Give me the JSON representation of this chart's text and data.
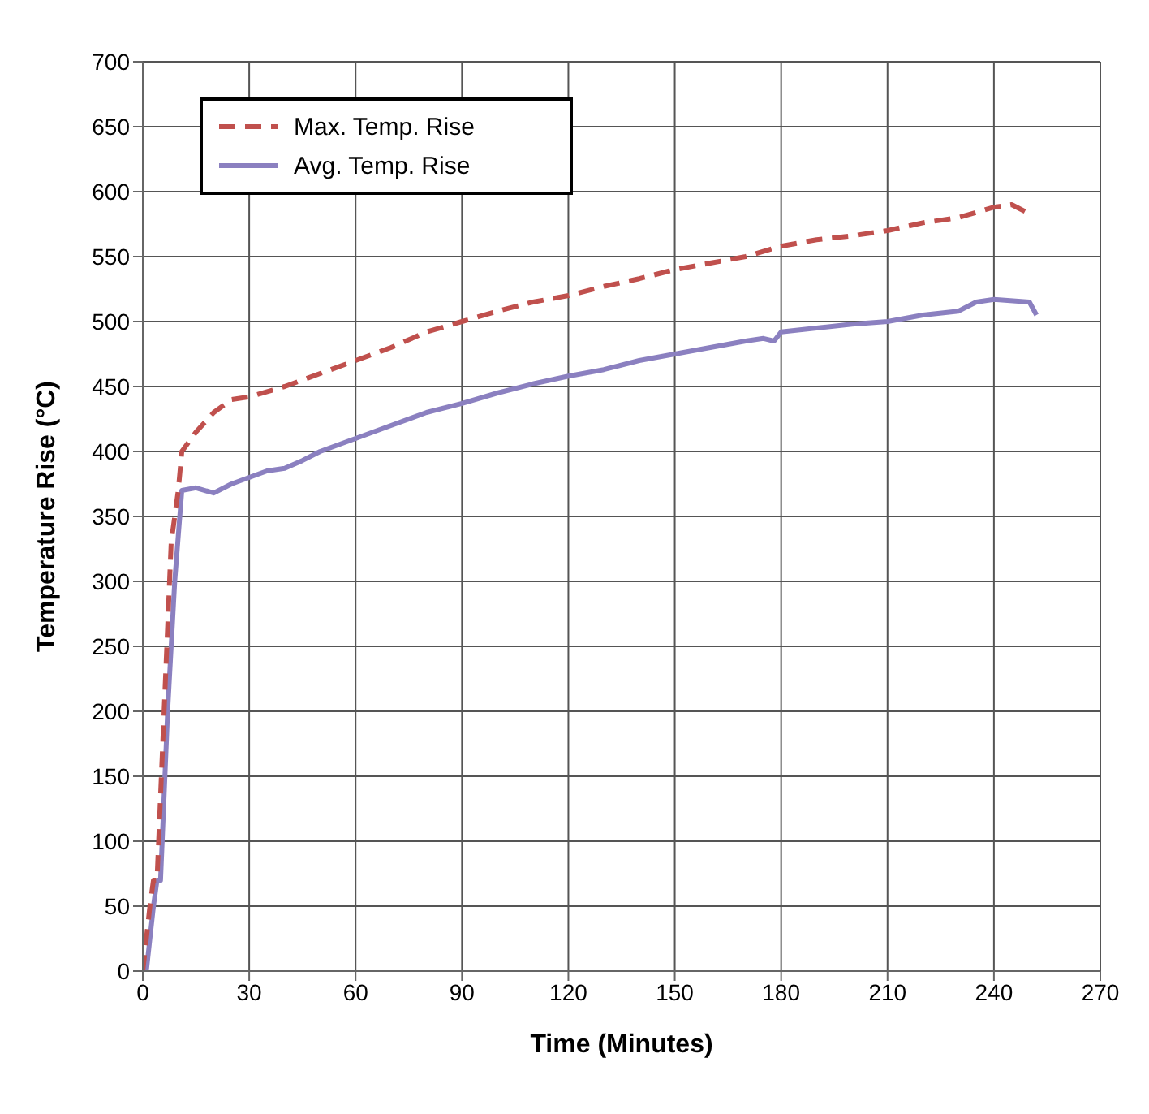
{
  "chart_data": {
    "type": "line",
    "xlabel": "Time (Minutes)",
    "ylabel": "Temperature Rise (°C)",
    "xlim": [
      0,
      270
    ],
    "xticks": [
      0,
      30,
      60,
      90,
      120,
      150,
      180,
      210,
      240,
      270
    ],
    "ylim": [
      0,
      700
    ],
    "yticks": [
      0,
      50,
      100,
      150,
      200,
      250,
      300,
      350,
      400,
      450,
      500,
      550,
      600,
      650,
      700
    ],
    "grid": true,
    "legend": "top left",
    "marker": "none",
    "series": [
      {
        "name": "Max. Temp. Rise",
        "color": "#c0504d",
        "line_style": "dashed",
        "x": [
          0,
          2,
          3,
          4,
          6,
          8,
          10,
          11,
          15,
          20,
          25,
          30,
          40,
          50,
          60,
          70,
          80,
          90,
          100,
          110,
          120,
          130,
          140,
          150,
          160,
          170,
          180,
          190,
          200,
          210,
          220,
          230,
          240,
          245,
          250
        ],
        "values": [
          0,
          50,
          70,
          70,
          200,
          330,
          370,
          400,
          415,
          430,
          440,
          442,
          450,
          460,
          470,
          480,
          492,
          500,
          508,
          515,
          520,
          527,
          533,
          540,
          545,
          550,
          558,
          563,
          566,
          570,
          576,
          580,
          588,
          590,
          583
        ]
      },
      {
        "name": "Avg. Temp. Rise",
        "color": "#8b80c0",
        "line_style": "solid",
        "x": [
          1,
          3,
          4,
          5,
          7,
          9,
          11,
          15,
          20,
          25,
          30,
          35,
          40,
          45,
          50,
          60,
          70,
          80,
          90,
          100,
          110,
          120,
          130,
          140,
          150,
          160,
          170,
          175,
          178,
          180,
          190,
          200,
          210,
          220,
          230,
          235,
          240,
          250,
          252
        ],
        "values": [
          0,
          50,
          70,
          70,
          200,
          300,
          370,
          372,
          368,
          375,
          380,
          385,
          387,
          393,
          400,
          410,
          420,
          430,
          437,
          445,
          452,
          458,
          463,
          470,
          475,
          480,
          485,
          487,
          485,
          492,
          495,
          498,
          500,
          505,
          508,
          515,
          517,
          515,
          505
        ]
      }
    ]
  }
}
